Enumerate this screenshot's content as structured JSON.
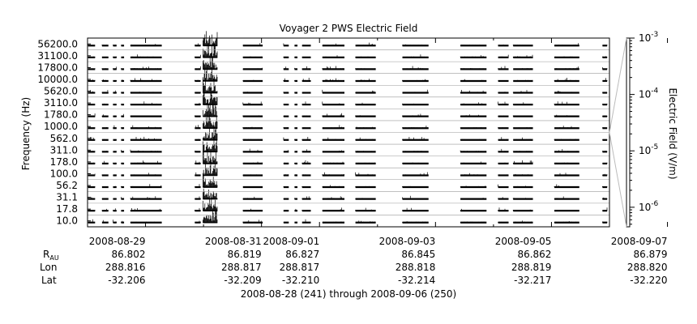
{
  "chart_data": {
    "type": "heatmap",
    "title": "Voyager 2 PWS Electric Field",
    "ylabel": "Frequency (Hz)",
    "colorbar_label": "Electric Field (V/m)",
    "colorbar_scale": "log",
    "colorbar_range": [
      4.5e-07,
      0.001
    ],
    "colorbar_ticks": [
      {
        "mantissa": "10",
        "exp": "-3",
        "value": 0.001
      },
      {
        "mantissa": "10",
        "exp": "-4",
        "value": 0.0001
      },
      {
        "mantissa": "10",
        "exp": "-5",
        "value": 1e-05
      },
      {
        "mantissa": "10",
        "exp": "-6",
        "value": 1e-06
      }
    ],
    "channels": [
      "10.0",
      "17.8",
      "31.1",
      "56.2",
      "100.0",
      "178.0",
      "311.0",
      "562.0",
      "1000.0",
      "1780.0",
      "3110.0",
      "5620.0",
      "10000.0",
      "17800.0",
      "31100.0",
      "56200.0"
    ],
    "xrange_days": [
      241.0,
      250.0
    ],
    "x_ticks": [
      {
        "label": "2008-08-29",
        "day": 242,
        "rau": "86.802",
        "lon": "288.816",
        "lat": "-32.206"
      },
      {
        "label": "2008-08-31",
        "day": 244,
        "rau": "86.819",
        "lon": "288.817",
        "lat": "-32.209"
      },
      {
        "label": "2008-09-01",
        "day": 245,
        "rau": "86.827",
        "lon": "288.817",
        "lat": "-32.210"
      },
      {
        "label": "2008-09-03",
        "day": 247,
        "rau": "86.845",
        "lon": "288.818",
        "lat": "-32.214"
      },
      {
        "label": "2008-09-05",
        "day": 249,
        "rau": "86.862",
        "lon": "288.819",
        "lat": "-32.217"
      },
      {
        "label": "2008-09-07",
        "day": 251,
        "rau": "86.879",
        "lon": "288.820",
        "lat": "-32.220"
      }
    ],
    "minor_tick_days": [
      241.0,
      243.0,
      246.0,
      248.0,
      250.0
    ],
    "row_labels": {
      "rau_main": "R",
      "rau_sub": "AU",
      "lon": "Lon",
      "lat": "Lat"
    },
    "date_range": "2008-08-28 (241) through 2008-09-06 (250)",
    "data_segments": [
      {
        "start": 241.01,
        "end": 241.13
      },
      {
        "start": 241.25,
        "end": 241.36
      },
      {
        "start": 241.44,
        "end": 241.5
      },
      {
        "start": 241.58,
        "end": 241.63
      },
      {
        "start": 241.74,
        "end": 242.28
      },
      {
        "start": 242.85,
        "end": 242.95
      },
      {
        "start": 242.99,
        "end": 243.24,
        "burst": true
      },
      {
        "start": 243.68,
        "end": 244.02
      },
      {
        "start": 244.38,
        "end": 244.47
      },
      {
        "start": 244.57,
        "end": 244.62
      },
      {
        "start": 244.7,
        "end": 244.85
      },
      {
        "start": 245.05,
        "end": 245.43
      },
      {
        "start": 245.62,
        "end": 245.97
      },
      {
        "start": 246.43,
        "end": 246.88
      },
      {
        "start": 247.43,
        "end": 247.88
      },
      {
        "start": 248.08,
        "end": 248.26
      },
      {
        "start": 248.34,
        "end": 248.68
      },
      {
        "start": 249.05,
        "end": 249.48
      },
      {
        "start": 249.88,
        "end": 249.96
      }
    ]
  }
}
